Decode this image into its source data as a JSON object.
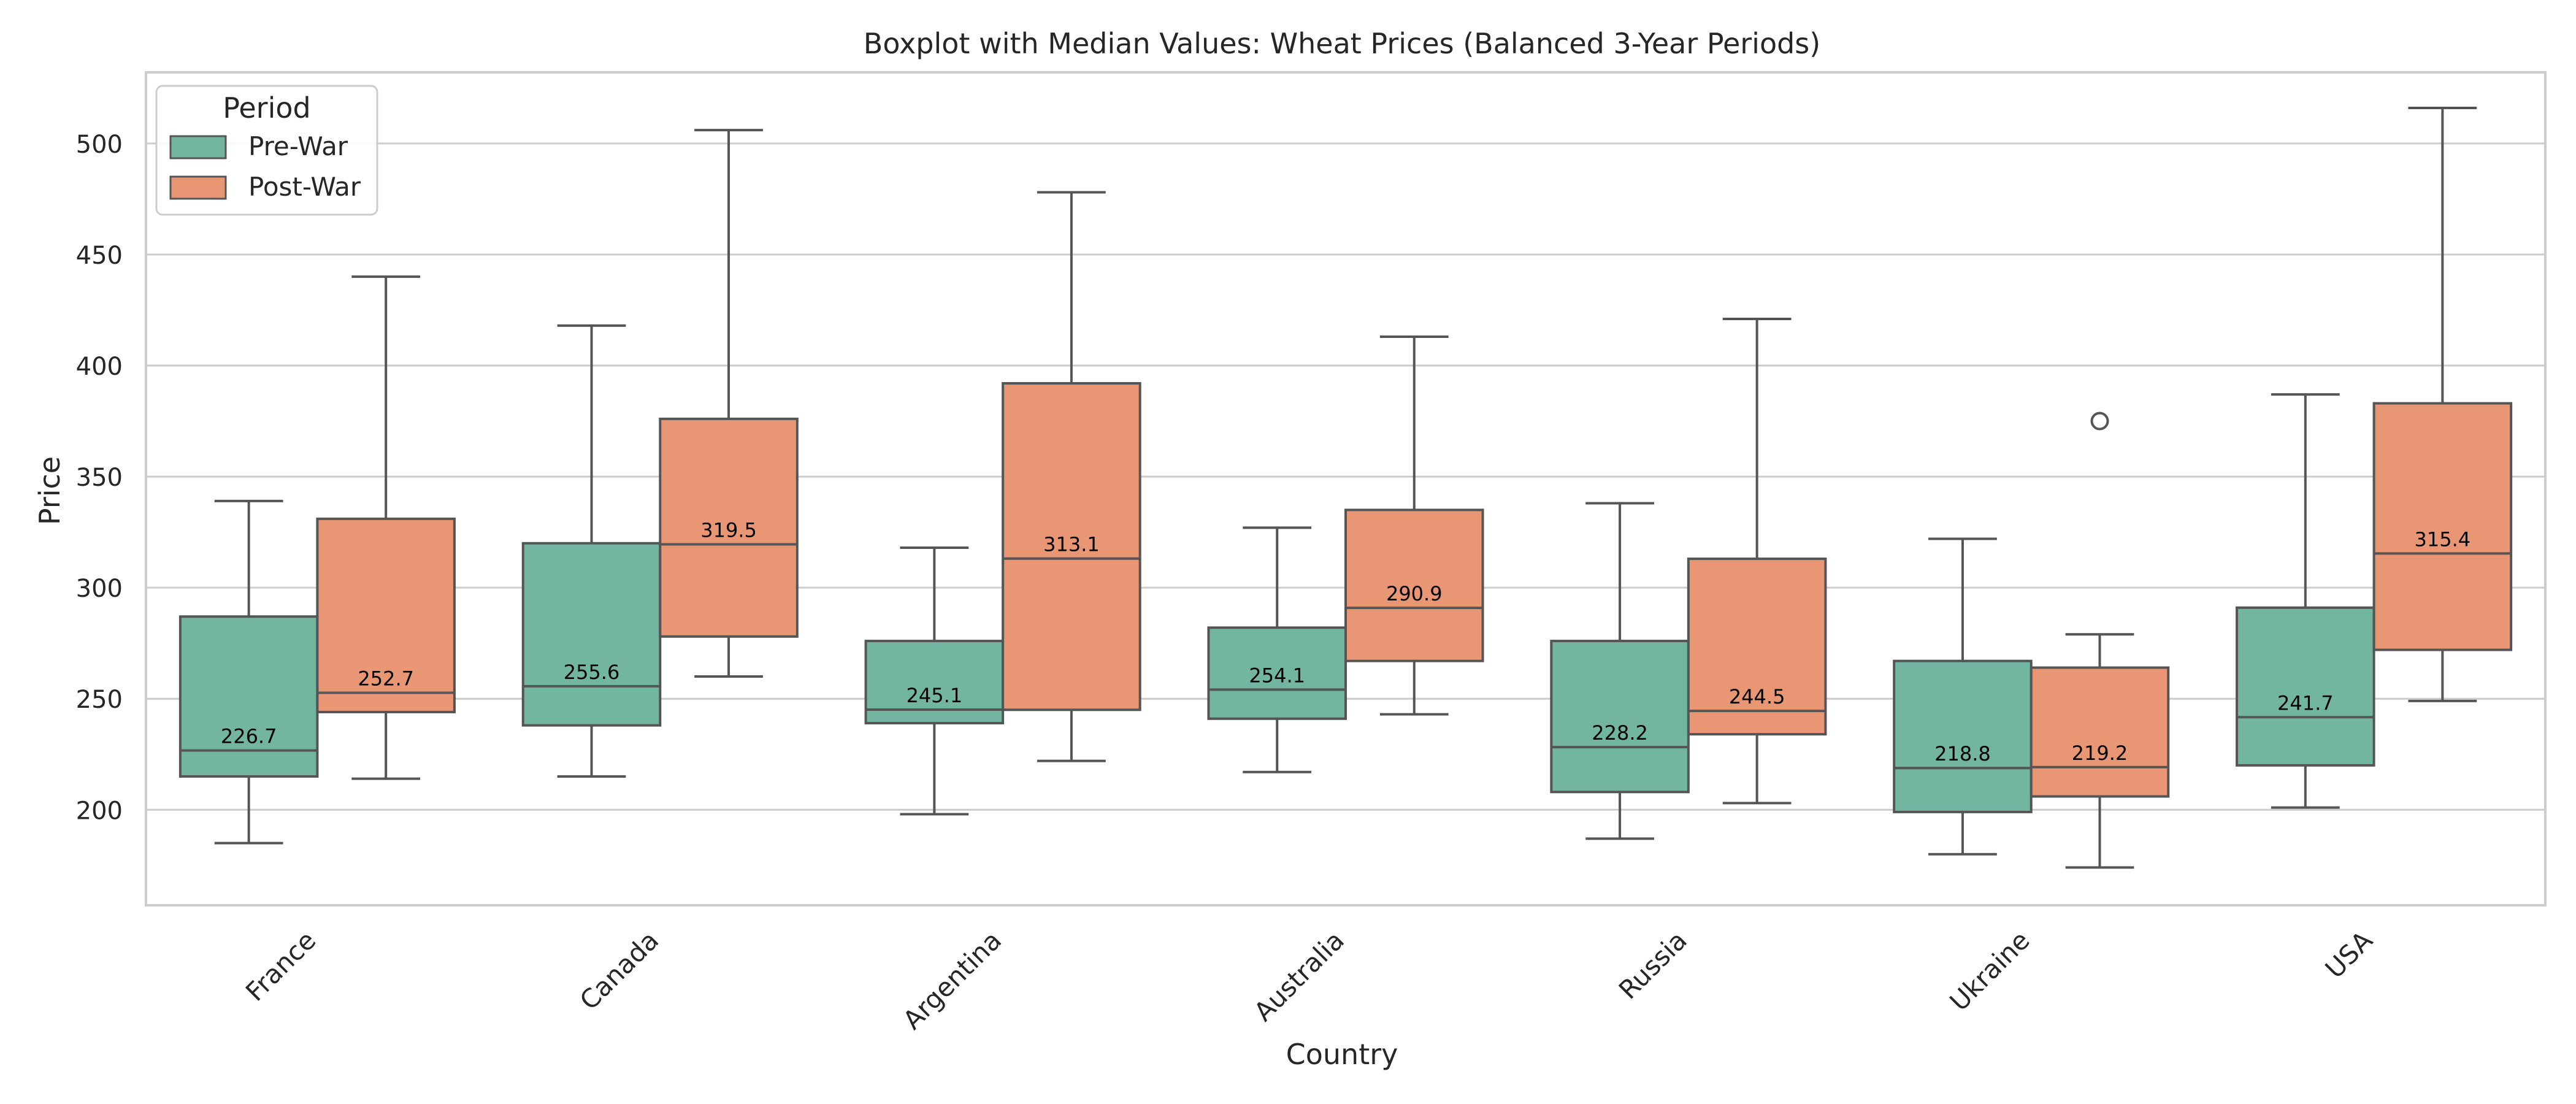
{
  "chart_data": {
    "type": "boxplot",
    "title": "Boxplot with Median Values: Wheat Prices (Balanced 3-Year Periods)",
    "xlabel": "Country",
    "ylabel": "Price",
    "ylim": [
      157,
      532
    ],
    "yticks": [
      200,
      250,
      300,
      350,
      400,
      450,
      500
    ],
    "grid": true,
    "legend": {
      "title": "Period",
      "position": "top-left"
    },
    "categories": [
      "France",
      "Canada",
      "Argentina",
      "Australia",
      "Russia",
      "Ukraine",
      "USA"
    ],
    "series": [
      {
        "name": "Pre-War",
        "color": "#72b6a1",
        "boxes": [
          {
            "whislo": 185,
            "q1": 215,
            "med": 226.7,
            "q3": 287,
            "whishi": 339,
            "fliers": []
          },
          {
            "whislo": 215,
            "q1": 238,
            "med": 255.6,
            "q3": 320,
            "whishi": 418,
            "fliers": []
          },
          {
            "whislo": 198,
            "q1": 239,
            "med": 245.1,
            "q3": 276,
            "whishi": 318,
            "fliers": []
          },
          {
            "whislo": 217,
            "q1": 241,
            "med": 254.1,
            "q3": 282,
            "whishi": 327,
            "fliers": []
          },
          {
            "whislo": 187,
            "q1": 208,
            "med": 228.2,
            "q3": 276,
            "whishi": 338,
            "fliers": []
          },
          {
            "whislo": 180,
            "q1": 199,
            "med": 218.8,
            "q3": 267,
            "whishi": 322,
            "fliers": []
          },
          {
            "whislo": 201,
            "q1": 220,
            "med": 241.7,
            "q3": 291,
            "whishi": 387,
            "fliers": []
          }
        ],
        "median_labels": [
          "226.7",
          "255.6",
          "245.1",
          "254.1",
          "228.2",
          "218.8",
          "241.7"
        ]
      },
      {
        "name": "Post-War",
        "color": "#e99675",
        "boxes": [
          {
            "whislo": 214,
            "q1": 244,
            "med": 252.7,
            "q3": 331,
            "whishi": 440,
            "fliers": []
          },
          {
            "whislo": 260,
            "q1": 278,
            "med": 319.5,
            "q3": 376,
            "whishi": 506,
            "fliers": []
          },
          {
            "whislo": 222,
            "q1": 245,
            "med": 313.1,
            "q3": 392,
            "whishi": 478,
            "fliers": []
          },
          {
            "whislo": 243,
            "q1": 267,
            "med": 290.9,
            "q3": 335,
            "whishi": 413,
            "fliers": []
          },
          {
            "whislo": 203,
            "q1": 234,
            "med": 244.5,
            "q3": 313,
            "whishi": 421,
            "fliers": []
          },
          {
            "whislo": 174,
            "q1": 206,
            "med": 219.2,
            "q3": 264,
            "whishi": 279,
            "fliers": [
              375
            ]
          },
          {
            "whislo": 249,
            "q1": 272,
            "med": 315.4,
            "q3": 383,
            "whishi": 516,
            "fliers": []
          }
        ],
        "median_labels": [
          "252.7",
          "319.5",
          "313.1",
          "290.9",
          "244.5",
          "219.2",
          "315.4"
        ]
      }
    ],
    "colors": {
      "box_edge": "#555555",
      "grid": "#cccccc",
      "frame": "#cccccc"
    }
  }
}
